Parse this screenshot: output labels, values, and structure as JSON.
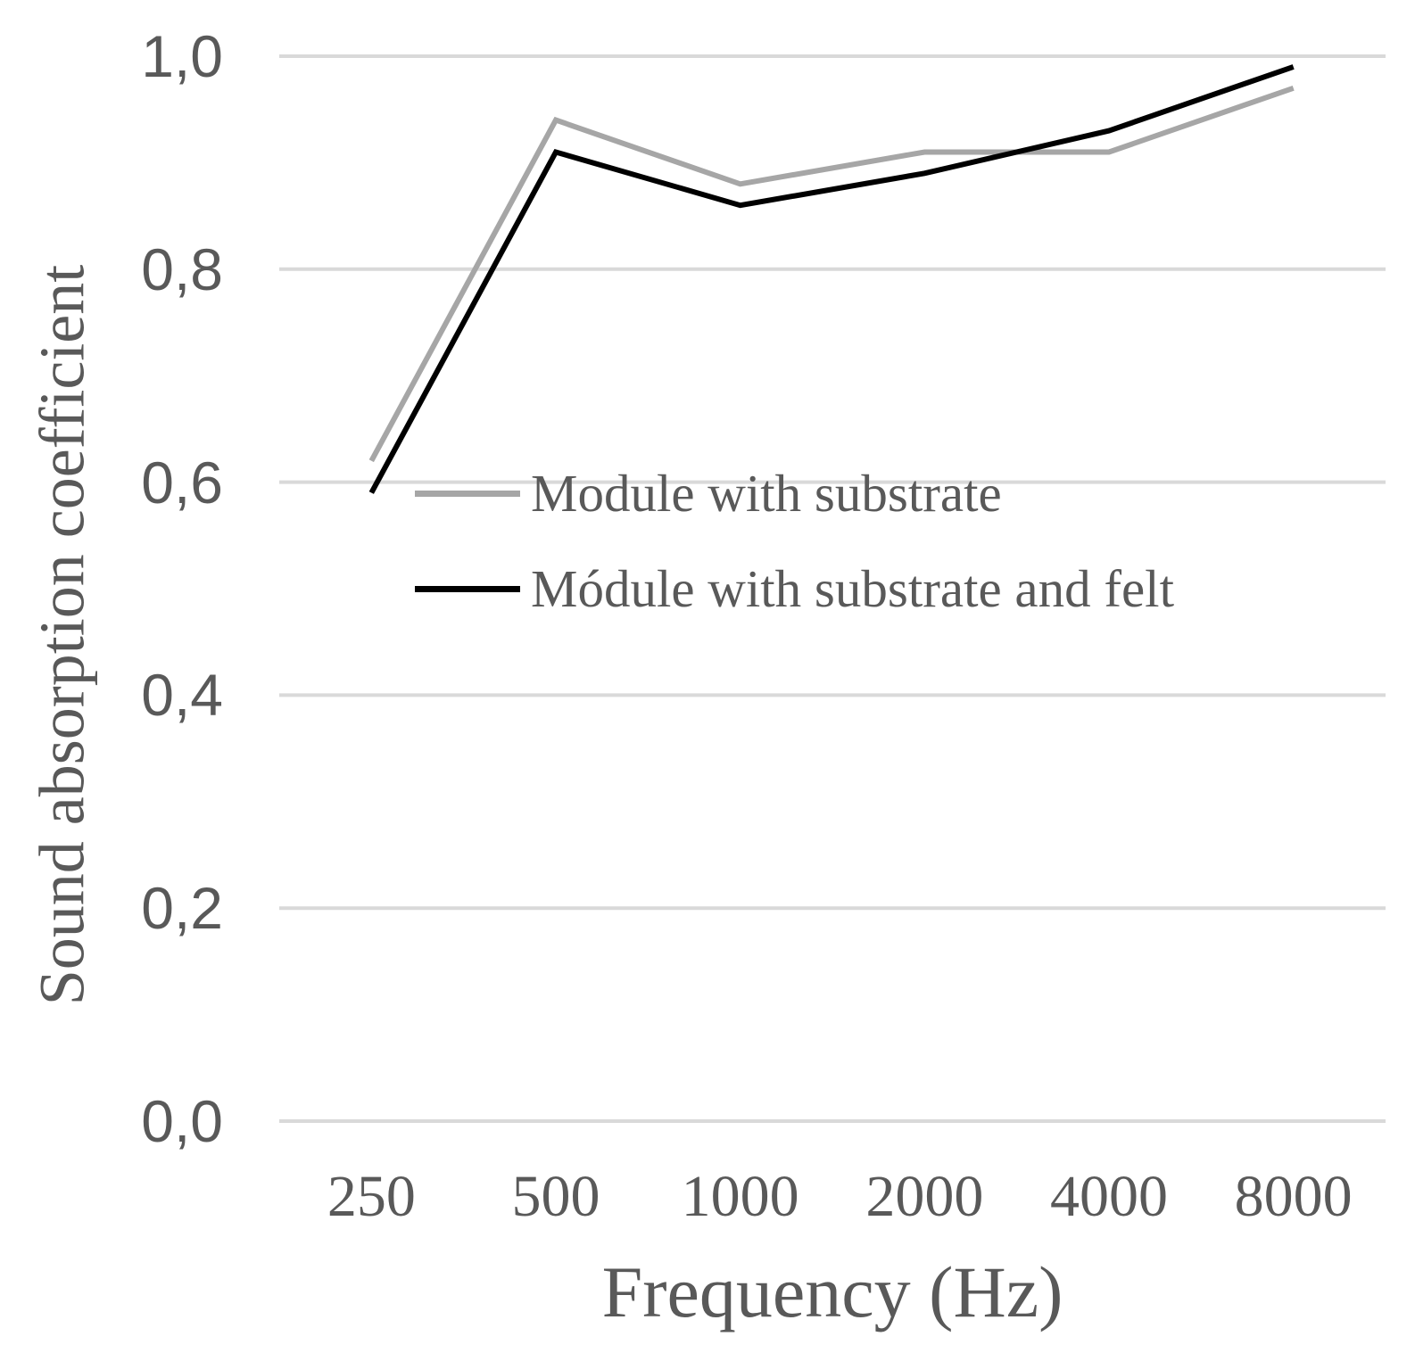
{
  "styles": {
    "background": "#ffffff",
    "text_color": "#595959",
    "gridline_color": "#d9d9d9"
  },
  "chart_data": {
    "type": "line",
    "title": "",
    "xlabel": "Frequency (Hz)",
    "ylabel": "Sound absorption coefficient",
    "categories": [
      250,
      500,
      1000,
      2000,
      4000,
      8000
    ],
    "x_tick_labels": [
      "250",
      "500",
      "1000",
      "2000",
      "4000",
      "8000"
    ],
    "y_axis": {
      "min": 0.0,
      "max": 1.0,
      "tick_step": 0.2,
      "tick_labels": [
        "0,0",
        "0,2",
        "0,4",
        "0,6",
        "0,8",
        "1,0"
      ]
    },
    "grid": "horizontal-only",
    "legend_position": "inside-middle-left",
    "series": [
      {
        "name": "Module with substrate",
        "color": "#a6a6a6",
        "values": [
          0.62,
          0.94,
          0.88,
          0.91,
          0.91,
          0.97
        ]
      },
      {
        "name": "Módule with substrate and felt",
        "color": "#000000",
        "values": [
          0.59,
          0.91,
          0.86,
          0.89,
          0.93,
          0.99
        ]
      }
    ]
  }
}
